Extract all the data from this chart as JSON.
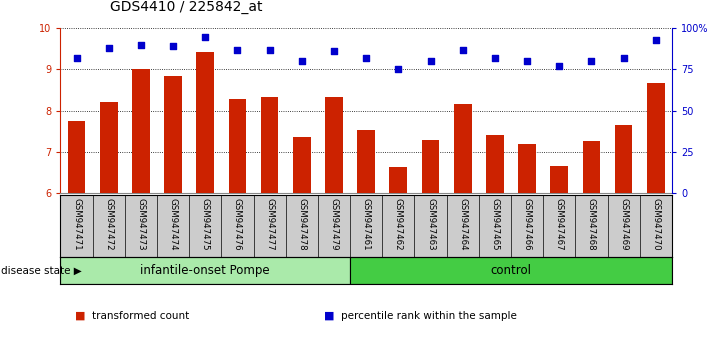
{
  "title": "GDS4410 / 225842_at",
  "samples": [
    "GSM947471",
    "GSM947472",
    "GSM947473",
    "GSM947474",
    "GSM947475",
    "GSM947476",
    "GSM947477",
    "GSM947478",
    "GSM947479",
    "GSM947461",
    "GSM947462",
    "GSM947463",
    "GSM947464",
    "GSM947465",
    "GSM947466",
    "GSM947467",
    "GSM947468",
    "GSM947469",
    "GSM947470"
  ],
  "bar_values": [
    7.75,
    8.2,
    9.02,
    8.85,
    9.42,
    8.28,
    8.34,
    7.35,
    8.33,
    7.52,
    6.62,
    7.28,
    8.15,
    7.4,
    7.2,
    6.65,
    7.25,
    7.65,
    8.68
  ],
  "dot_values_pct": [
    82,
    88,
    90,
    89,
    95,
    87,
    87,
    80,
    86,
    82,
    75,
    80,
    87,
    82,
    80,
    77,
    80,
    82,
    93
  ],
  "bar_color": "#cc2200",
  "dot_color": "#0000cc",
  "ylim_left": [
    6,
    10
  ],
  "ylim_right": [
    0,
    100
  ],
  "yticks_left": [
    6,
    7,
    8,
    9,
    10
  ],
  "yticks_right": [
    0,
    25,
    50,
    75,
    100
  ],
  "ytick_labels_right": [
    "0",
    "25",
    "50",
    "75",
    "100%"
  ],
  "groups": [
    {
      "label": "infantile-onset Pompe",
      "start": 0,
      "end": 9,
      "color": "#aaeaaa"
    },
    {
      "label": "control",
      "start": 9,
      "end": 19,
      "color": "#44cc44"
    }
  ],
  "group_label_prefix": "disease state",
  "legend_items": [
    {
      "label": "transformed count",
      "color": "#cc2200"
    },
    {
      "label": "percentile rank within the sample",
      "color": "#0000cc"
    }
  ],
  "background_color": "#ffffff",
  "tick_area_color": "#cccccc",
  "title_fontsize": 10,
  "tick_fontsize": 7,
  "label_fontsize": 8.5
}
